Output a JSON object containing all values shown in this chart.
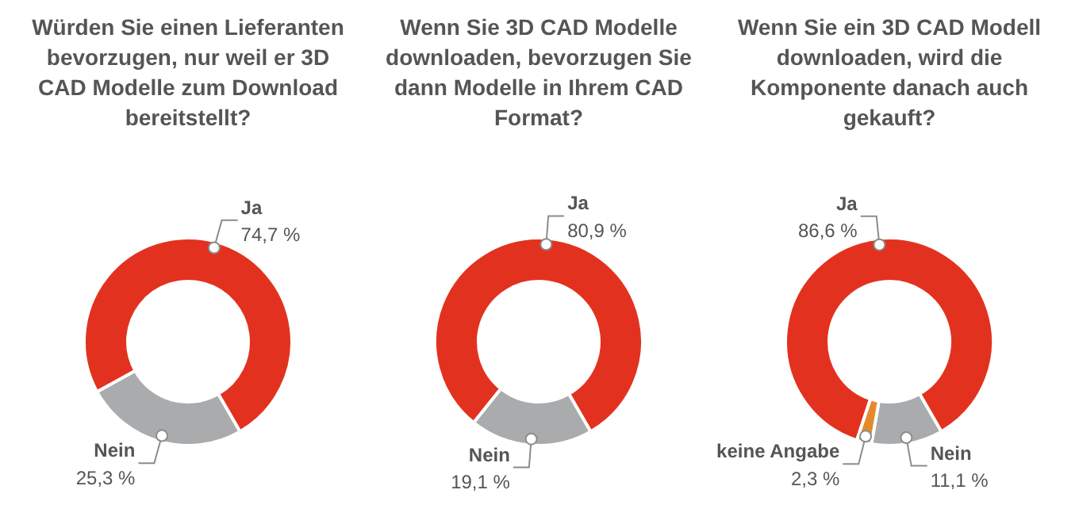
{
  "chart_data": [
    {
      "type": "donut",
      "title": "Würden Sie einen Lieferanten bevorzugen, nur weil er 3D CAD Modelle zum Download bereitstellt?",
      "categories": [
        "Ja",
        "Nein"
      ],
      "values": [
        74.7,
        25.3
      ],
      "colors": [
        "#e2321f",
        "#a9abad"
      ],
      "value_labels": [
        "74,7 %",
        "25,3 %"
      ]
    },
    {
      "type": "donut",
      "title": "Wenn Sie 3D CAD Modelle downloaden, bevorzugen Sie dann Modelle in Ihrem CAD Format?",
      "categories": [
        "Ja",
        "Nein"
      ],
      "values": [
        80.9,
        19.1
      ],
      "colors": [
        "#e2321f",
        "#a9abad"
      ],
      "value_labels": [
        "80,9 %",
        "19,1 %"
      ]
    },
    {
      "type": "donut",
      "title": "Wenn Sie ein 3D CAD Modell downloaden, wird die Komponente danach auch gekauft?",
      "categories": [
        "Ja",
        "Nein",
        "keine Angabe"
      ],
      "values": [
        86.6,
        11.1,
        2.3
      ],
      "colors": [
        "#e2321f",
        "#a9abad",
        "#e38b2c"
      ],
      "value_labels": [
        "86,6 %",
        "11,1 %",
        "2,3 %"
      ]
    }
  ]
}
